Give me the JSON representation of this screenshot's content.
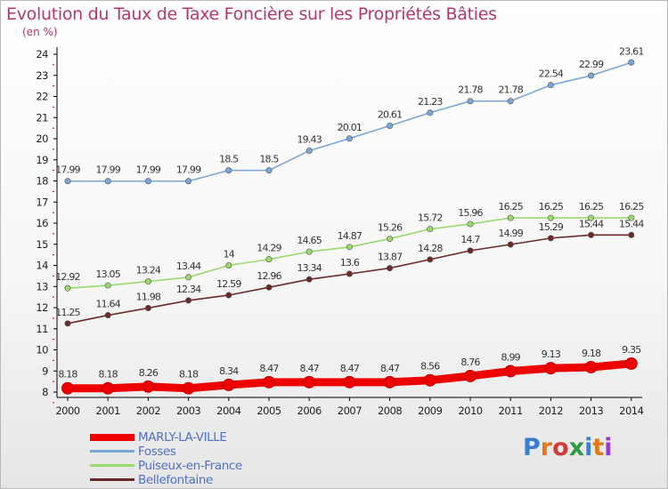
{
  "title": "Evolution du Taux de Taxe Foncière sur les Propriétés Bâties",
  "unit": "(en %)",
  "logo": {
    "text": "Proxiti",
    "colors": [
      "#3a7fcf",
      "#e07a1c",
      "#cf3a3a",
      "#2f9a40",
      "#3a7fcf",
      "#e07a1c",
      "#9b3acf"
    ]
  },
  "chart_data": {
    "type": "line",
    "title": "Evolution du Taux de Taxe Foncière sur les Propriétés Bâties",
    "ylabel": "(en %)",
    "x": [
      "2000",
      "2001",
      "2002",
      "2003",
      "2004",
      "2005",
      "2006",
      "2007",
      "2008",
      "2009",
      "2010",
      "2011",
      "2012",
      "2013",
      "2014"
    ],
    "ylim": [
      8,
      24
    ],
    "yticks": [
      8,
      9,
      10,
      11,
      12,
      13,
      14,
      15,
      16,
      17,
      18,
      19,
      20,
      21,
      22,
      23,
      24
    ],
    "grid": false,
    "legend_position": "bottom-left",
    "series": [
      {
        "name": "MARLY-LA-VILLE",
        "color": "#ee0000",
        "values": [
          8.18,
          8.18,
          8.26,
          8.18,
          8.34,
          8.47,
          8.47,
          8.47,
          8.47,
          8.56,
          8.76,
          8.99,
          9.13,
          9.18,
          9.35
        ],
        "labels": [
          "8.18",
          "8.18",
          "8.26",
          "8.18",
          "8.34",
          "8.47",
          "8.47",
          "8.47",
          "8.47",
          "8.56",
          "8.76",
          "8.99",
          "9.13",
          "9.18",
          "9.35"
        ]
      },
      {
        "name": "Fosses",
        "color": "#79a8d8",
        "values": [
          17.99,
          17.99,
          17.99,
          17.99,
          18.5,
          18.5,
          19.43,
          20.01,
          20.61,
          21.23,
          21.78,
          21.78,
          22.54,
          22.99,
          23.61
        ],
        "labels": [
          "17.99",
          "17.99",
          "17.99",
          "17.99",
          "18.5",
          "18.5",
          "19.43",
          "20.01",
          "20.61",
          "21.23",
          "21.78",
          "21.78",
          "22.54",
          "22.99",
          "23.61"
        ]
      },
      {
        "name": "Puiseux-en-France",
        "color": "#9ad96c",
        "values": [
          12.92,
          13.05,
          13.24,
          13.44,
          14,
          14.29,
          14.65,
          14.87,
          15.26,
          15.72,
          15.96,
          16.25,
          16.25,
          16.25,
          16.25
        ],
        "labels": [
          "12.92",
          "13.05",
          "13.24",
          "13.44",
          "14",
          "14.29",
          "14.65",
          "14.87",
          "15.26",
          "15.72",
          "15.96",
          "16.25",
          "16.25",
          "16.25",
          "16.25"
        ]
      },
      {
        "name": "Bellefontaine",
        "color": "#6b2a2a",
        "values": [
          11.25,
          11.64,
          11.98,
          12.34,
          12.59,
          12.96,
          13.34,
          13.6,
          13.87,
          14.28,
          14.7,
          14.99,
          15.29,
          15.44,
          15.44
        ],
        "labels": [
          "11.25",
          "11.64",
          "11.98",
          "12.34",
          "12.59",
          "12.96",
          "13.34",
          "13.6",
          "13.87",
          "14.28",
          "14.7",
          "14.99",
          "15.29",
          "15.44",
          "15.44"
        ]
      }
    ]
  }
}
